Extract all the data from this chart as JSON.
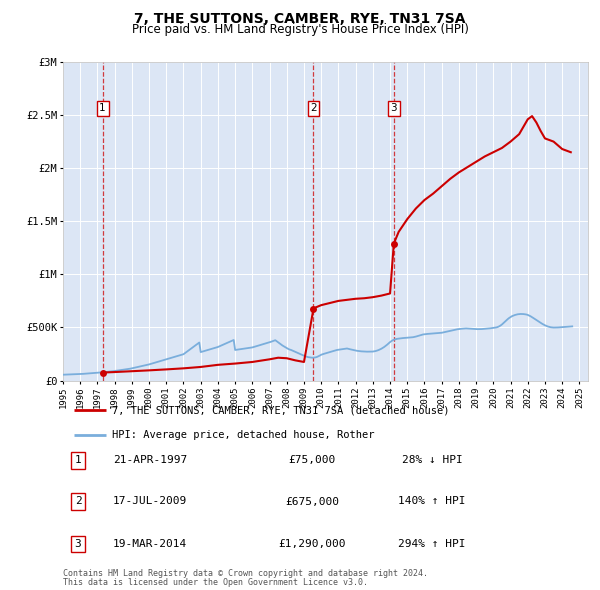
{
  "title": "7, THE SUTTONS, CAMBER, RYE, TN31 7SA",
  "subtitle": "Price paid vs. HM Land Registry's House Price Index (HPI)",
  "background_color": "#ffffff",
  "plot_bg_color": "#dce6f5",
  "red_line_color": "#cc0000",
  "blue_line_color": "#7aaedc",
  "sale_marker_color": "#cc0000",
  "xlim": [
    1995,
    2025.5
  ],
  "ylim": [
    0,
    3000000
  ],
  "yticks": [
    0,
    500000,
    1000000,
    1500000,
    2000000,
    2500000,
    3000000
  ],
  "ytick_labels": [
    "£0",
    "£500K",
    "£1M",
    "£1.5M",
    "£2M",
    "£2.5M",
    "£3M"
  ],
  "xticks": [
    1995,
    1996,
    1997,
    1998,
    1999,
    2000,
    2001,
    2002,
    2003,
    2004,
    2005,
    2006,
    2007,
    2008,
    2009,
    2010,
    2011,
    2012,
    2013,
    2014,
    2015,
    2016,
    2017,
    2018,
    2019,
    2020,
    2021,
    2022,
    2023,
    2024,
    2025
  ],
  "sales": [
    {
      "num": 1,
      "date": "21-APR-1997",
      "year": 1997.3,
      "price": 75000,
      "pct": "28%",
      "dir": "↓"
    },
    {
      "num": 2,
      "date": "17-JUL-2009",
      "year": 2009.55,
      "price": 675000,
      "pct": "140%",
      "dir": "↑"
    },
    {
      "num": 3,
      "date": "19-MAR-2014",
      "year": 2014.22,
      "price": 1290000,
      "pct": "294%",
      "dir": "↑"
    }
  ],
  "legend_line1": "7, THE SUTTONS, CAMBER, RYE, TN31 7SA (detached house)",
  "legend_line2": "HPI: Average price, detached house, Rother",
  "footer1": "Contains HM Land Registry data © Crown copyright and database right 2024.",
  "footer2": "This data is licensed under the Open Government Licence v3.0.",
  "hpi_x": [
    1995.0,
    1995.083,
    1995.167,
    1995.25,
    1995.333,
    1995.417,
    1995.5,
    1995.583,
    1995.667,
    1995.75,
    1995.833,
    1995.917,
    1996.0,
    1996.083,
    1996.167,
    1996.25,
    1996.333,
    1996.417,
    1996.5,
    1996.583,
    1996.667,
    1996.75,
    1996.833,
    1996.917,
    1997.0,
    1997.083,
    1997.167,
    1997.25,
    1997.333,
    1997.417,
    1997.5,
    1997.583,
    1997.667,
    1997.75,
    1997.833,
    1997.917,
    1998.0,
    1998.083,
    1998.167,
    1998.25,
    1998.333,
    1998.417,
    1998.5,
    1998.583,
    1998.667,
    1998.75,
    1998.833,
    1998.917,
    1999.0,
    1999.083,
    1999.167,
    1999.25,
    1999.333,
    1999.417,
    1999.5,
    1999.583,
    1999.667,
    1999.75,
    1999.833,
    1999.917,
    2000.0,
    2000.083,
    2000.167,
    2000.25,
    2000.333,
    2000.417,
    2000.5,
    2000.583,
    2000.667,
    2000.75,
    2000.833,
    2000.917,
    2001.0,
    2001.083,
    2001.167,
    2001.25,
    2001.333,
    2001.417,
    2001.5,
    2001.583,
    2001.667,
    2001.75,
    2001.833,
    2001.917,
    2002.0,
    2002.083,
    2002.167,
    2002.25,
    2002.333,
    2002.417,
    2002.5,
    2002.583,
    2002.667,
    2002.75,
    2002.833,
    2002.917,
    2003.0,
    2003.083,
    2003.167,
    2003.25,
    2003.333,
    2003.417,
    2003.5,
    2003.583,
    2003.667,
    2003.75,
    2003.833,
    2003.917,
    2004.0,
    2004.083,
    2004.167,
    2004.25,
    2004.333,
    2004.417,
    2004.5,
    2004.583,
    2004.667,
    2004.75,
    2004.833,
    2004.917,
    2005.0,
    2005.083,
    2005.167,
    2005.25,
    2005.333,
    2005.417,
    2005.5,
    2005.583,
    2005.667,
    2005.75,
    2005.833,
    2005.917,
    2006.0,
    2006.083,
    2006.167,
    2006.25,
    2006.333,
    2006.417,
    2006.5,
    2006.583,
    2006.667,
    2006.75,
    2006.833,
    2006.917,
    2007.0,
    2007.083,
    2007.167,
    2007.25,
    2007.333,
    2007.417,
    2007.5,
    2007.583,
    2007.667,
    2007.75,
    2007.833,
    2007.917,
    2008.0,
    2008.083,
    2008.167,
    2008.25,
    2008.333,
    2008.417,
    2008.5,
    2008.583,
    2008.667,
    2008.75,
    2008.833,
    2008.917,
    2009.0,
    2009.083,
    2009.167,
    2009.25,
    2009.333,
    2009.417,
    2009.5,
    2009.583,
    2009.667,
    2009.75,
    2009.833,
    2009.917,
    2010.0,
    2010.083,
    2010.167,
    2010.25,
    2010.333,
    2010.417,
    2010.5,
    2010.583,
    2010.667,
    2010.75,
    2010.833,
    2010.917,
    2011.0,
    2011.083,
    2011.167,
    2011.25,
    2011.333,
    2011.417,
    2011.5,
    2011.583,
    2011.667,
    2011.75,
    2011.833,
    2011.917,
    2012.0,
    2012.083,
    2012.167,
    2012.25,
    2012.333,
    2012.417,
    2012.5,
    2012.583,
    2012.667,
    2012.75,
    2012.833,
    2012.917,
    2013.0,
    2013.083,
    2013.167,
    2013.25,
    2013.333,
    2013.417,
    2013.5,
    2013.583,
    2013.667,
    2013.75,
    2013.833,
    2013.917,
    2014.0,
    2014.083,
    2014.167,
    2014.25,
    2014.333,
    2014.417,
    2014.5,
    2014.583,
    2014.667,
    2014.75,
    2014.833,
    2014.917,
    2015.0,
    2015.083,
    2015.167,
    2015.25,
    2015.333,
    2015.417,
    2015.5,
    2015.583,
    2015.667,
    2015.75,
    2015.833,
    2015.917,
    2016.0,
    2016.083,
    2016.167,
    2016.25,
    2016.333,
    2016.417,
    2016.5,
    2016.583,
    2016.667,
    2016.75,
    2016.833,
    2016.917,
    2017.0,
    2017.083,
    2017.167,
    2017.25,
    2017.333,
    2017.417,
    2017.5,
    2017.583,
    2017.667,
    2017.75,
    2017.833,
    2017.917,
    2018.0,
    2018.083,
    2018.167,
    2018.25,
    2018.333,
    2018.417,
    2018.5,
    2018.583,
    2018.667,
    2018.75,
    2018.833,
    2018.917,
    2019.0,
    2019.083,
    2019.167,
    2019.25,
    2019.333,
    2019.417,
    2019.5,
    2019.583,
    2019.667,
    2019.75,
    2019.833,
    2019.917,
    2020.0,
    2020.083,
    2020.167,
    2020.25,
    2020.333,
    2020.417,
    2020.5,
    2020.583,
    2020.667,
    2020.75,
    2020.833,
    2020.917,
    2021.0,
    2021.083,
    2021.167,
    2021.25,
    2021.333,
    2021.417,
    2021.5,
    2021.583,
    2021.667,
    2021.75,
    2021.833,
    2021.917,
    2022.0,
    2022.083,
    2022.167,
    2022.25,
    2022.333,
    2022.417,
    2022.5,
    2022.583,
    2022.667,
    2022.75,
    2022.833,
    2022.917,
    2023.0,
    2023.083,
    2023.167,
    2023.25,
    2023.333,
    2023.417,
    2023.5,
    2023.583,
    2023.667,
    2023.75,
    2023.833,
    2023.917,
    2024.0,
    2024.083,
    2024.167,
    2024.25,
    2024.333,
    2024.417,
    2024.5,
    2024.583
  ],
  "hpi_y": [
    55000,
    55500,
    56000,
    56500,
    57000,
    57500,
    58000,
    58500,
    59000,
    59500,
    60000,
    60500,
    61000,
    62000,
    63000,
    64000,
    65000,
    66000,
    67000,
    68000,
    69000,
    70000,
    71000,
    72000,
    73000,
    74000,
    75000,
    76500,
    78000,
    79500,
    81000,
    82500,
    84000,
    85500,
    87000,
    88500,
    90000,
    92000,
    94000,
    96000,
    98000,
    100000,
    102000,
    104000,
    106000,
    108000,
    110000,
    112000,
    115000,
    118000,
    121000,
    124000,
    127000,
    130000,
    133000,
    136000,
    139000,
    142000,
    145000,
    148000,
    152000,
    156000,
    160000,
    164000,
    168000,
    172000,
    176000,
    180000,
    184000,
    188000,
    192000,
    196000,
    200000,
    204000,
    208000,
    212000,
    216000,
    220000,
    224000,
    228000,
    232000,
    236000,
    240000,
    244000,
    248000,
    258000,
    268000,
    278000,
    288000,
    298000,
    308000,
    318000,
    328000,
    338000,
    348000,
    358000,
    268000,
    272000,
    276000,
    280000,
    284000,
    288000,
    292000,
    296000,
    300000,
    304000,
    308000,
    312000,
    316000,
    322000,
    328000,
    334000,
    340000,
    346000,
    352000,
    358000,
    364000,
    370000,
    376000,
    382000,
    288000,
    290000,
    292000,
    294000,
    296000,
    298000,
    300000,
    302000,
    304000,
    306000,
    308000,
    310000,
    312000,
    316000,
    320000,
    324000,
    328000,
    332000,
    336000,
    340000,
    344000,
    348000,
    352000,
    356000,
    360000,
    365000,
    370000,
    375000,
    380000,
    370000,
    360000,
    350000,
    340000,
    330000,
    322000,
    314000,
    306000,
    298000,
    292000,
    288000,
    282000,
    276000,
    270000,
    264000,
    258000,
    252000,
    246000,
    240000,
    234000,
    228000,
    224000,
    220000,
    218000,
    216000,
    215000,
    216000,
    218000,
    222000,
    228000,
    235000,
    243000,
    248000,
    252000,
    256000,
    260000,
    264000,
    268000,
    272000,
    276000,
    280000,
    284000,
    288000,
    290000,
    292000,
    294000,
    296000,
    298000,
    300000,
    302000,
    298000,
    295000,
    292000,
    289000,
    286000,
    283000,
    280000,
    278000,
    276000,
    275000,
    274000,
    273000,
    272000,
    272000,
    272000,
    272000,
    272000,
    273000,
    275000,
    278000,
    282000,
    287000,
    293000,
    300000,
    308000,
    317000,
    327000,
    338000,
    350000,
    362000,
    372000,
    380000,
    386000,
    390000,
    393000,
    395000,
    397000,
    399000,
    400000,
    401000,
    402000,
    402000,
    403000,
    404000,
    406000,
    408000,
    411000,
    414000,
    418000,
    422000,
    426000,
    430000,
    434000,
    436000,
    438000,
    439000,
    440000,
    441000,
    442000,
    443000,
    444000,
    445000,
    446000,
    447000,
    448000,
    450000,
    453000,
    456000,
    459000,
    462000,
    465000,
    468000,
    471000,
    474000,
    477000,
    480000,
    483000,
    485000,
    487000,
    488000,
    489000,
    490000,
    491000,
    490000,
    489000,
    488000,
    487000,
    486000,
    485000,
    484000,
    484000,
    484000,
    484000,
    485000,
    486000,
    487000,
    488000,
    489000,
    490000,
    492000,
    494000,
    495000,
    497000,
    500000,
    504000,
    510000,
    518000,
    528000,
    540000,
    553000,
    566000,
    578000,
    589000,
    598000,
    606000,
    612000,
    617000,
    621000,
    624000,
    626000,
    627000,
    627000,
    626000,
    624000,
    622000,
    618000,
    612000,
    605000,
    597000,
    588000,
    579000,
    570000,
    561000,
    552000,
    543000,
    535000,
    527000,
    520000,
    514000,
    509000,
    505000,
    502000,
    500000,
    499000,
    499000,
    499000,
    500000,
    501000,
    502000,
    503000,
    504000,
    505000,
    506000,
    507000,
    508000,
    509000,
    510000
  ],
  "red_x_segments": [
    [
      1997.3,
      1997.4,
      1998.0,
      1999.0,
      2000.0,
      2001.0,
      2002.0,
      2003.0,
      2004.0,
      2005.0,
      2006.0,
      2007.0,
      2007.5,
      2008.0,
      2008.5,
      2009.0,
      2009.55
    ],
    [
      2009.55,
      2009.7,
      2010.0,
      2010.5,
      2011.0,
      2011.5,
      2012.0,
      2012.5,
      2013.0,
      2013.5,
      2014.0,
      2014.22
    ],
    [
      2014.22,
      2014.5,
      2015.0,
      2015.5,
      2016.0,
      2016.5,
      2017.0,
      2017.5,
      2018.0,
      2018.5,
      2019.0,
      2019.5,
      2020.0,
      2020.5,
      2021.0,
      2021.5,
      2022.0,
      2022.25,
      2022.5,
      2022.75,
      2023.0,
      2023.5,
      2024.0,
      2024.5
    ]
  ],
  "red_y_segments": [
    [
      75000,
      76000,
      80000,
      88000,
      96000,
      105000,
      115000,
      128000,
      148000,
      160000,
      175000,
      200000,
      215000,
      210000,
      190000,
      175000,
      675000
    ],
    [
      675000,
      690000,
      710000,
      730000,
      750000,
      760000,
      770000,
      775000,
      785000,
      800000,
      820000,
      1290000
    ],
    [
      1290000,
      1400000,
      1520000,
      1620000,
      1700000,
      1760000,
      1830000,
      1900000,
      1960000,
      2010000,
      2060000,
      2110000,
      2150000,
      2190000,
      2250000,
      2320000,
      2460000,
      2490000,
      2430000,
      2350000,
      2280000,
      2250000,
      2180000,
      2150000
    ]
  ]
}
